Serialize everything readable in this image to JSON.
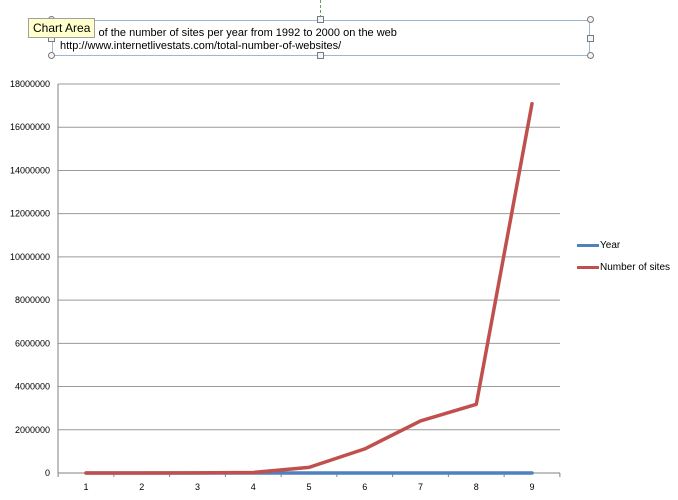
{
  "tooltip": "Chart Area",
  "chart_data": {
    "type": "line",
    "title": "Growth of the number of sites per year from 1992 to 2000 on the web",
    "subtitle": "http://www.internetlivestats.com/total-number-of-websites/",
    "categories": [
      "1",
      "2",
      "3",
      "4",
      "5",
      "6",
      "7",
      "8",
      "9"
    ],
    "ylim": [
      0,
      18000000
    ],
    "yticks": [
      0,
      2000000,
      4000000,
      6000000,
      8000000,
      10000000,
      12000000,
      14000000,
      16000000,
      18000000
    ],
    "grid": true,
    "legend_position": "right",
    "series": [
      {
        "name": "Year",
        "color": "#4f81bd",
        "values": [
          1992,
          1993,
          1994,
          1995,
          1996,
          1997,
          1998,
          1999,
          2000
        ]
      },
      {
        "name": "Number of sites",
        "color": "#c0504d",
        "values": [
          10,
          130,
          2738,
          23500,
          257601,
          1117255,
          2410067,
          3177453,
          17087182
        ]
      }
    ]
  }
}
